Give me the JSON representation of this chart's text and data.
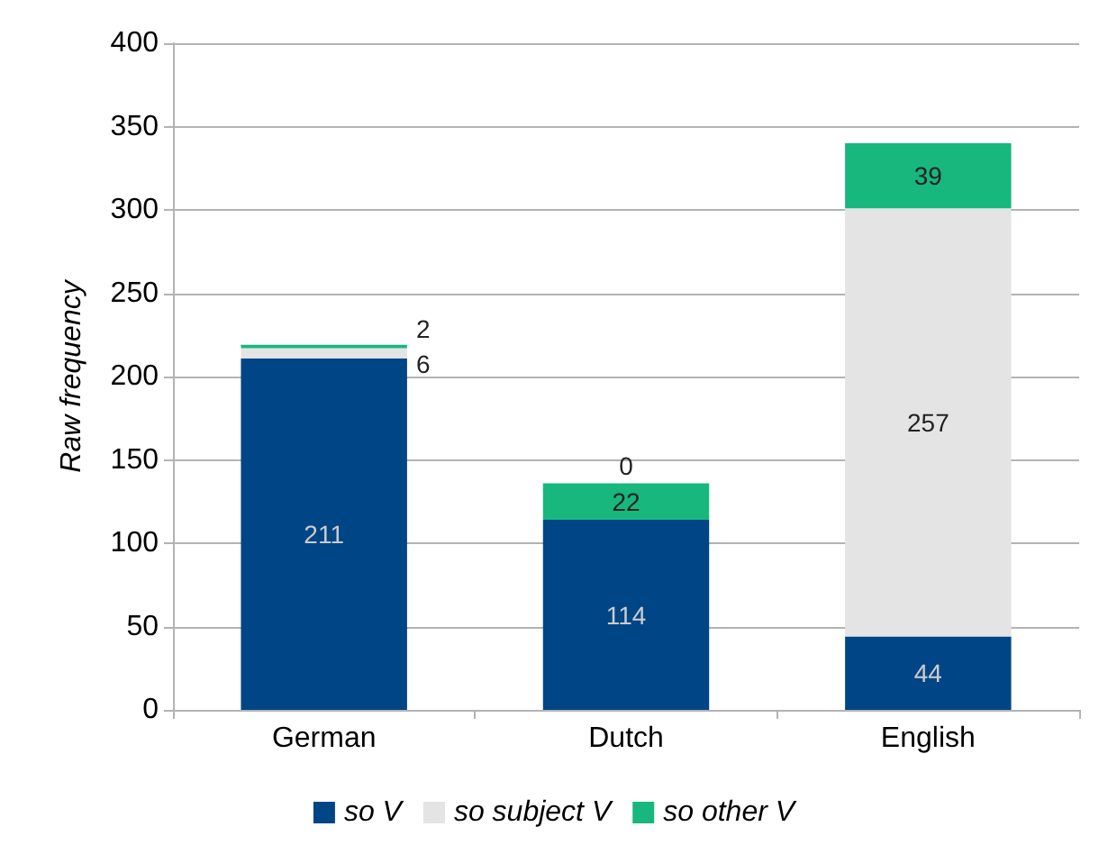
{
  "chart_data": {
    "type": "bar",
    "ylabel": "Raw frequency",
    "categories": [
      "German",
      "Dutch",
      "English"
    ],
    "stacked": true,
    "series": [
      {
        "name": "so V",
        "color": "#004586",
        "values": [
          211,
          114,
          44
        ]
      },
      {
        "name": "so subject V",
        "color": "#e4e4e4",
        "values": [
          6,
          0,
          257
        ]
      },
      {
        "name": "so other V",
        "color": "#17b77e",
        "values": [
          2,
          22,
          39
        ]
      }
    ],
    "ylim": [
      0,
      400
    ],
    "yticks": [
      0,
      50,
      100,
      150,
      200,
      250,
      300,
      350,
      400
    ],
    "grid": "y",
    "legend": "bottom",
    "data_labels": true
  }
}
